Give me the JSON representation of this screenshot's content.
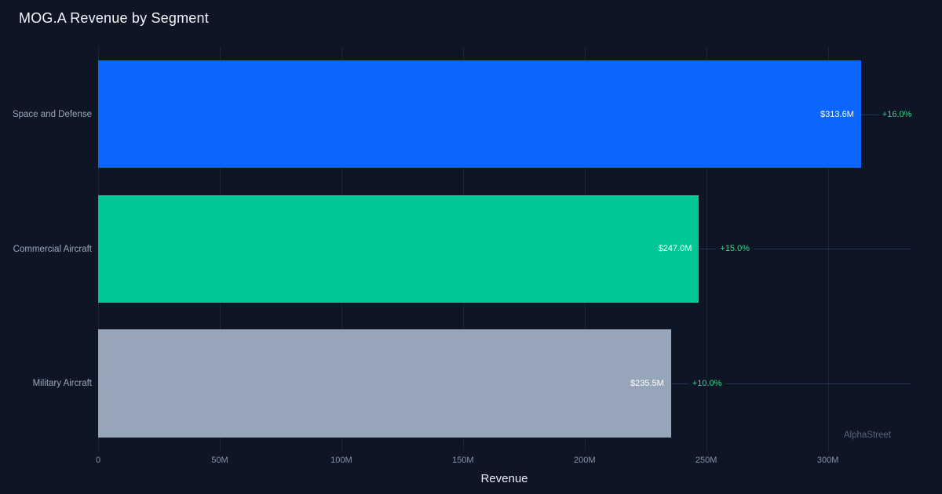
{
  "page": {
    "title": "MOG.A Revenue by Segment",
    "watermark": "AlphaStreet"
  },
  "chart_data": {
    "type": "bar",
    "orientation": "horizontal",
    "title": "MOG.A Revenue by Segment",
    "xlabel": "Revenue",
    "xmax": 334,
    "grid": true,
    "categories": [
      "Space and Defense",
      "Commercial Aircraft",
      "Military Aircraft"
    ],
    "values": [
      313.6,
      247.0,
      235.5
    ],
    "value_labels": [
      "$313.6M",
      "$247.0M",
      "$235.5M"
    ],
    "growth_labels": [
      "+16.0%",
      "+15.0%",
      "+10.0%"
    ],
    "bar_colors": [
      "#0a66ff",
      "#00c794",
      "#96a5b8"
    ],
    "growth_color": "#3ccf8f",
    "ticks": [
      {
        "value": 0,
        "label": "0"
      },
      {
        "value": 50,
        "label": "50M"
      },
      {
        "value": 100,
        "label": "100M"
      },
      {
        "value": 150,
        "label": "150M"
      },
      {
        "value": 200,
        "label": "200M"
      },
      {
        "value": 250,
        "label": "250M"
      },
      {
        "value": 300,
        "label": "300M"
      }
    ]
  }
}
